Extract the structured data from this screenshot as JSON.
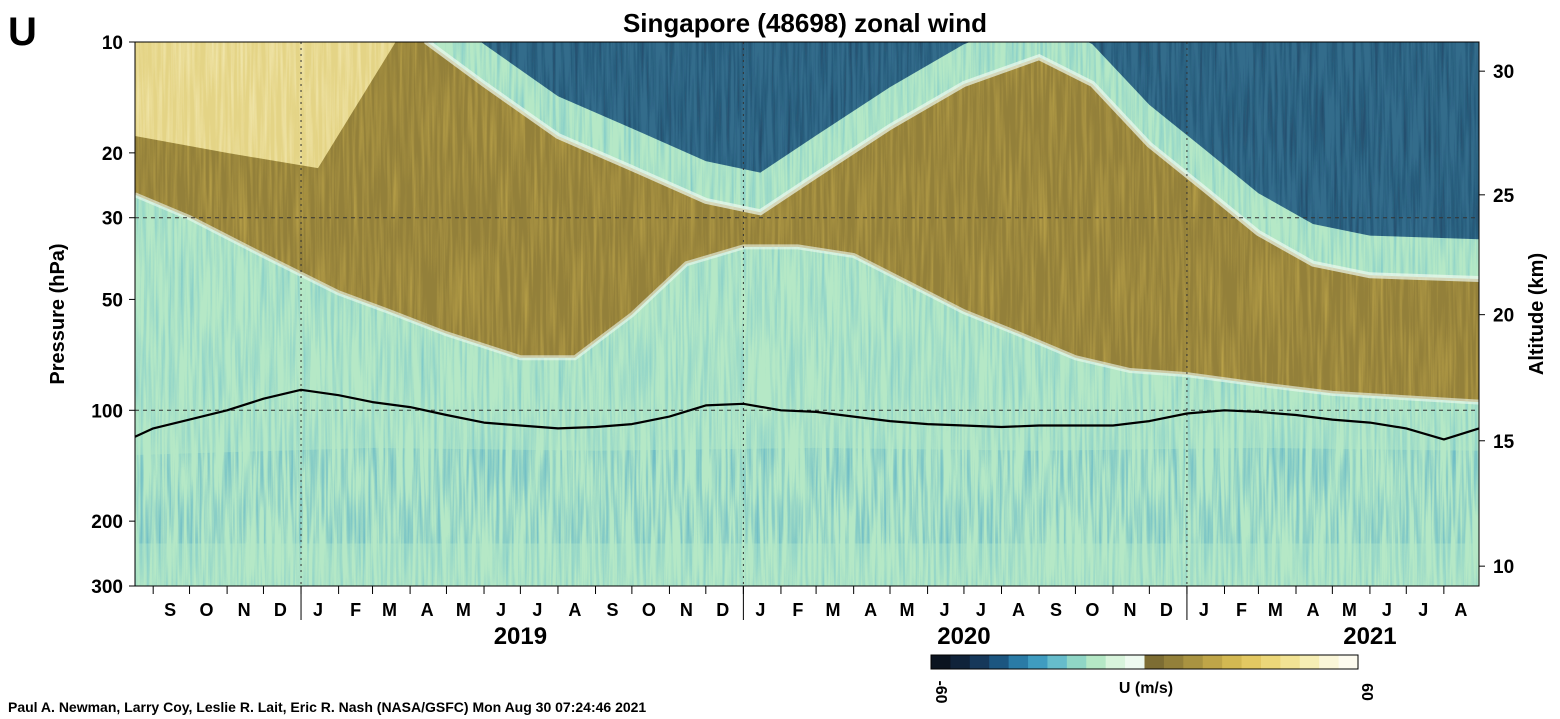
{
  "panel_letter": "U",
  "credit": "Paul A. Newman, Larry Coy, Leslie R. Lait, Eric R. Nash (NASA/GSFC) Mon Aug 30 07:24:46 2021",
  "colorscale": [
    "#0b1420",
    "#10233a",
    "#16385a",
    "#1c5680",
    "#2a7ba6",
    "#3f9cc0",
    "#66bccb",
    "#90d6c6",
    "#b5e8c6",
    "#d8f4dc",
    "#eefaf0",
    "#7d6d33",
    "#93803a",
    "#a99341",
    "#bfa548",
    "#d3b852",
    "#e3c862",
    "#ecd779",
    "#f2e394",
    "#f6eeb4",
    "#faf6d8",
    "#fdfbef"
  ],
  "chart_data": {
    "type": "heatmap",
    "title": "Singapore (48698) zonal wind",
    "ylabel": "Pressure (hPa)",
    "y2label": "Altitude (km)",
    "y_scale": "log",
    "y_reversed": true,
    "ylim": [
      300,
      10
    ],
    "yticks": [
      10,
      20,
      30,
      50,
      100,
      200,
      300
    ],
    "y2ticks": [
      {
        "km": 30,
        "hPa": 12
      },
      {
        "km": 25,
        "hPa": 26
      },
      {
        "km": 20,
        "hPa": 55
      },
      {
        "km": 15,
        "hPa": 121
      },
      {
        "km": 10,
        "hPa": 265
      }
    ],
    "dashed_levels_hPa": [
      30,
      100
    ],
    "xlim": [
      "2018-08-17",
      "2021-08-30"
    ],
    "month_labels": [
      {
        "label": "S",
        "date": "2018-09-15"
      },
      {
        "label": "O",
        "date": "2018-10-15"
      },
      {
        "label": "N",
        "date": "2018-11-15"
      },
      {
        "label": "D",
        "date": "2018-12-15"
      },
      {
        "label": "J",
        "date": "2019-01-15"
      },
      {
        "label": "F",
        "date": "2019-02-15"
      },
      {
        "label": "M",
        "date": "2019-03-15"
      },
      {
        "label": "A",
        "date": "2019-04-15"
      },
      {
        "label": "M",
        "date": "2019-05-15"
      },
      {
        "label": "J",
        "date": "2019-06-15"
      },
      {
        "label": "J",
        "date": "2019-07-15"
      },
      {
        "label": "A",
        "date": "2019-08-15"
      },
      {
        "label": "S",
        "date": "2019-09-15"
      },
      {
        "label": "O",
        "date": "2019-10-15"
      },
      {
        "label": "N",
        "date": "2019-11-15"
      },
      {
        "label": "D",
        "date": "2019-12-15"
      },
      {
        "label": "J",
        "date": "2020-01-15"
      },
      {
        "label": "F",
        "date": "2020-02-15"
      },
      {
        "label": "M",
        "date": "2020-03-15"
      },
      {
        "label": "A",
        "date": "2020-04-15"
      },
      {
        "label": "M",
        "date": "2020-05-15"
      },
      {
        "label": "J",
        "date": "2020-06-15"
      },
      {
        "label": "J",
        "date": "2020-07-15"
      },
      {
        "label": "A",
        "date": "2020-08-15"
      },
      {
        "label": "S",
        "date": "2020-09-15"
      },
      {
        "label": "O",
        "date": "2020-10-15"
      },
      {
        "label": "N",
        "date": "2020-11-15"
      },
      {
        "label": "D",
        "date": "2020-12-15"
      },
      {
        "label": "J",
        "date": "2021-01-15"
      },
      {
        "label": "F",
        "date": "2021-02-15"
      },
      {
        "label": "M",
        "date": "2021-03-15"
      },
      {
        "label": "A",
        "date": "2021-04-15"
      },
      {
        "label": "M",
        "date": "2021-05-15"
      },
      {
        "label": "J",
        "date": "2021-06-15"
      },
      {
        "label": "J",
        "date": "2021-07-15"
      },
      {
        "label": "A",
        "date": "2021-08-15"
      }
    ],
    "year_labels": [
      {
        "label": "2019",
        "date": "2019-07-01"
      },
      {
        "label": "2020",
        "date": "2020-07-01"
      },
      {
        "label": "2021",
        "date": "2021-06-01"
      }
    ],
    "year_boundaries": [
      "2019-01-01",
      "2020-01-01",
      "2021-01-01"
    ],
    "colorbar": {
      "label": "U (m/s)",
      "min": -60,
      "max": 60,
      "min_label": "-60",
      "max_label": "60"
    },
    "easterly_top_hPa": [
      {
        "date": "2018-08-17",
        "p": 5
      },
      {
        "date": "2019-03-20",
        "p": 5
      },
      {
        "date": "2019-04-15",
        "p": 10
      },
      {
        "date": "2019-06-01",
        "p": 13
      },
      {
        "date": "2019-08-01",
        "p": 18
      },
      {
        "date": "2019-10-01",
        "p": 22
      },
      {
        "date": "2019-12-01",
        "p": 27
      },
      {
        "date": "2020-01-15",
        "p": 29
      },
      {
        "date": "2020-03-01",
        "p": 23
      },
      {
        "date": "2020-05-01",
        "p": 17
      },
      {
        "date": "2020-07-01",
        "p": 13
      },
      {
        "date": "2020-09-01",
        "p": 11
      },
      {
        "date": "2020-10-15",
        "p": 13
      },
      {
        "date": "2020-12-01",
        "p": 19
      },
      {
        "date": "2021-01-15",
        "p": 25
      },
      {
        "date": "2021-03-01",
        "p": 33
      },
      {
        "date": "2021-04-15",
        "p": 40
      },
      {
        "date": "2021-06-01",
        "p": 43
      },
      {
        "date": "2021-08-30",
        "p": 44
      }
    ],
    "easterly_bottom_hPa": [
      {
        "date": "2018-08-17",
        "p": 26
      },
      {
        "date": "2018-10-01",
        "p": 30
      },
      {
        "date": "2018-12-01",
        "p": 38
      },
      {
        "date": "2019-02-01",
        "p": 48
      },
      {
        "date": "2019-03-15",
        "p": 54
      },
      {
        "date": "2019-05-01",
        "p": 62
      },
      {
        "date": "2019-07-01",
        "p": 72
      },
      {
        "date": "2019-08-15",
        "p": 72
      },
      {
        "date": "2019-10-01",
        "p": 55
      },
      {
        "date": "2019-11-15",
        "p": 40
      },
      {
        "date": "2020-01-01",
        "p": 36
      },
      {
        "date": "2020-02-15",
        "p": 36
      },
      {
        "date": "2020-04-01",
        "p": 38
      },
      {
        "date": "2020-05-15",
        "p": 45
      },
      {
        "date": "2020-07-01",
        "p": 54
      },
      {
        "date": "2020-08-15",
        "p": 62
      },
      {
        "date": "2020-10-01",
        "p": 72
      },
      {
        "date": "2020-11-15",
        "p": 78
      },
      {
        "date": "2021-01-01",
        "p": 80
      },
      {
        "date": "2021-03-01",
        "p": 85
      },
      {
        "date": "2021-05-01",
        "p": 90
      },
      {
        "date": "2021-08-30",
        "p": 95
      }
    ],
    "lower_easterly_top_hPa": [
      {
        "date": "2018-08-17",
        "p": 115
      },
      {
        "date": "2019-03-01",
        "p": 110
      },
      {
        "date": "2019-09-01",
        "p": 112
      },
      {
        "date": "2020-03-01",
        "p": 110
      },
      {
        "date": "2020-09-01",
        "p": 112
      },
      {
        "date": "2021-03-01",
        "p": 110
      },
      {
        "date": "2021-08-30",
        "p": 112
      }
    ],
    "tropopause_hPa": [
      {
        "date": "2018-08-17",
        "p": 118
      },
      {
        "date": "2018-09-01",
        "p": 112
      },
      {
        "date": "2018-10-01",
        "p": 106
      },
      {
        "date": "2018-11-01",
        "p": 100
      },
      {
        "date": "2018-12-01",
        "p": 93
      },
      {
        "date": "2019-01-01",
        "p": 88
      },
      {
        "date": "2019-02-01",
        "p": 91
      },
      {
        "date": "2019-03-01",
        "p": 95
      },
      {
        "date": "2019-04-01",
        "p": 98
      },
      {
        "date": "2019-05-01",
        "p": 103
      },
      {
        "date": "2019-06-01",
        "p": 108
      },
      {
        "date": "2019-07-01",
        "p": 110
      },
      {
        "date": "2019-08-01",
        "p": 112
      },
      {
        "date": "2019-09-01",
        "p": 111
      },
      {
        "date": "2019-10-01",
        "p": 109
      },
      {
        "date": "2019-11-01",
        "p": 104
      },
      {
        "date": "2019-12-01",
        "p": 97
      },
      {
        "date": "2020-01-01",
        "p": 96
      },
      {
        "date": "2020-02-01",
        "p": 100
      },
      {
        "date": "2020-03-01",
        "p": 101
      },
      {
        "date": "2020-04-01",
        "p": 104
      },
      {
        "date": "2020-05-01",
        "p": 107
      },
      {
        "date": "2020-06-01",
        "p": 109
      },
      {
        "date": "2020-07-01",
        "p": 110
      },
      {
        "date": "2020-08-01",
        "p": 111
      },
      {
        "date": "2020-09-01",
        "p": 110
      },
      {
        "date": "2020-10-01",
        "p": 110
      },
      {
        "date": "2020-11-01",
        "p": 110
      },
      {
        "date": "2020-12-01",
        "p": 107
      },
      {
        "date": "2021-01-01",
        "p": 102
      },
      {
        "date": "2021-02-01",
        "p": 100
      },
      {
        "date": "2021-03-01",
        "p": 101
      },
      {
        "date": "2021-04-01",
        "p": 103
      },
      {
        "date": "2021-05-01",
        "p": 106
      },
      {
        "date": "2021-06-01",
        "p": 108
      },
      {
        "date": "2021-07-01",
        "p": 112
      },
      {
        "date": "2021-08-01",
        "p": 120
      },
      {
        "date": "2021-08-30",
        "p": 112
      }
    ]
  }
}
